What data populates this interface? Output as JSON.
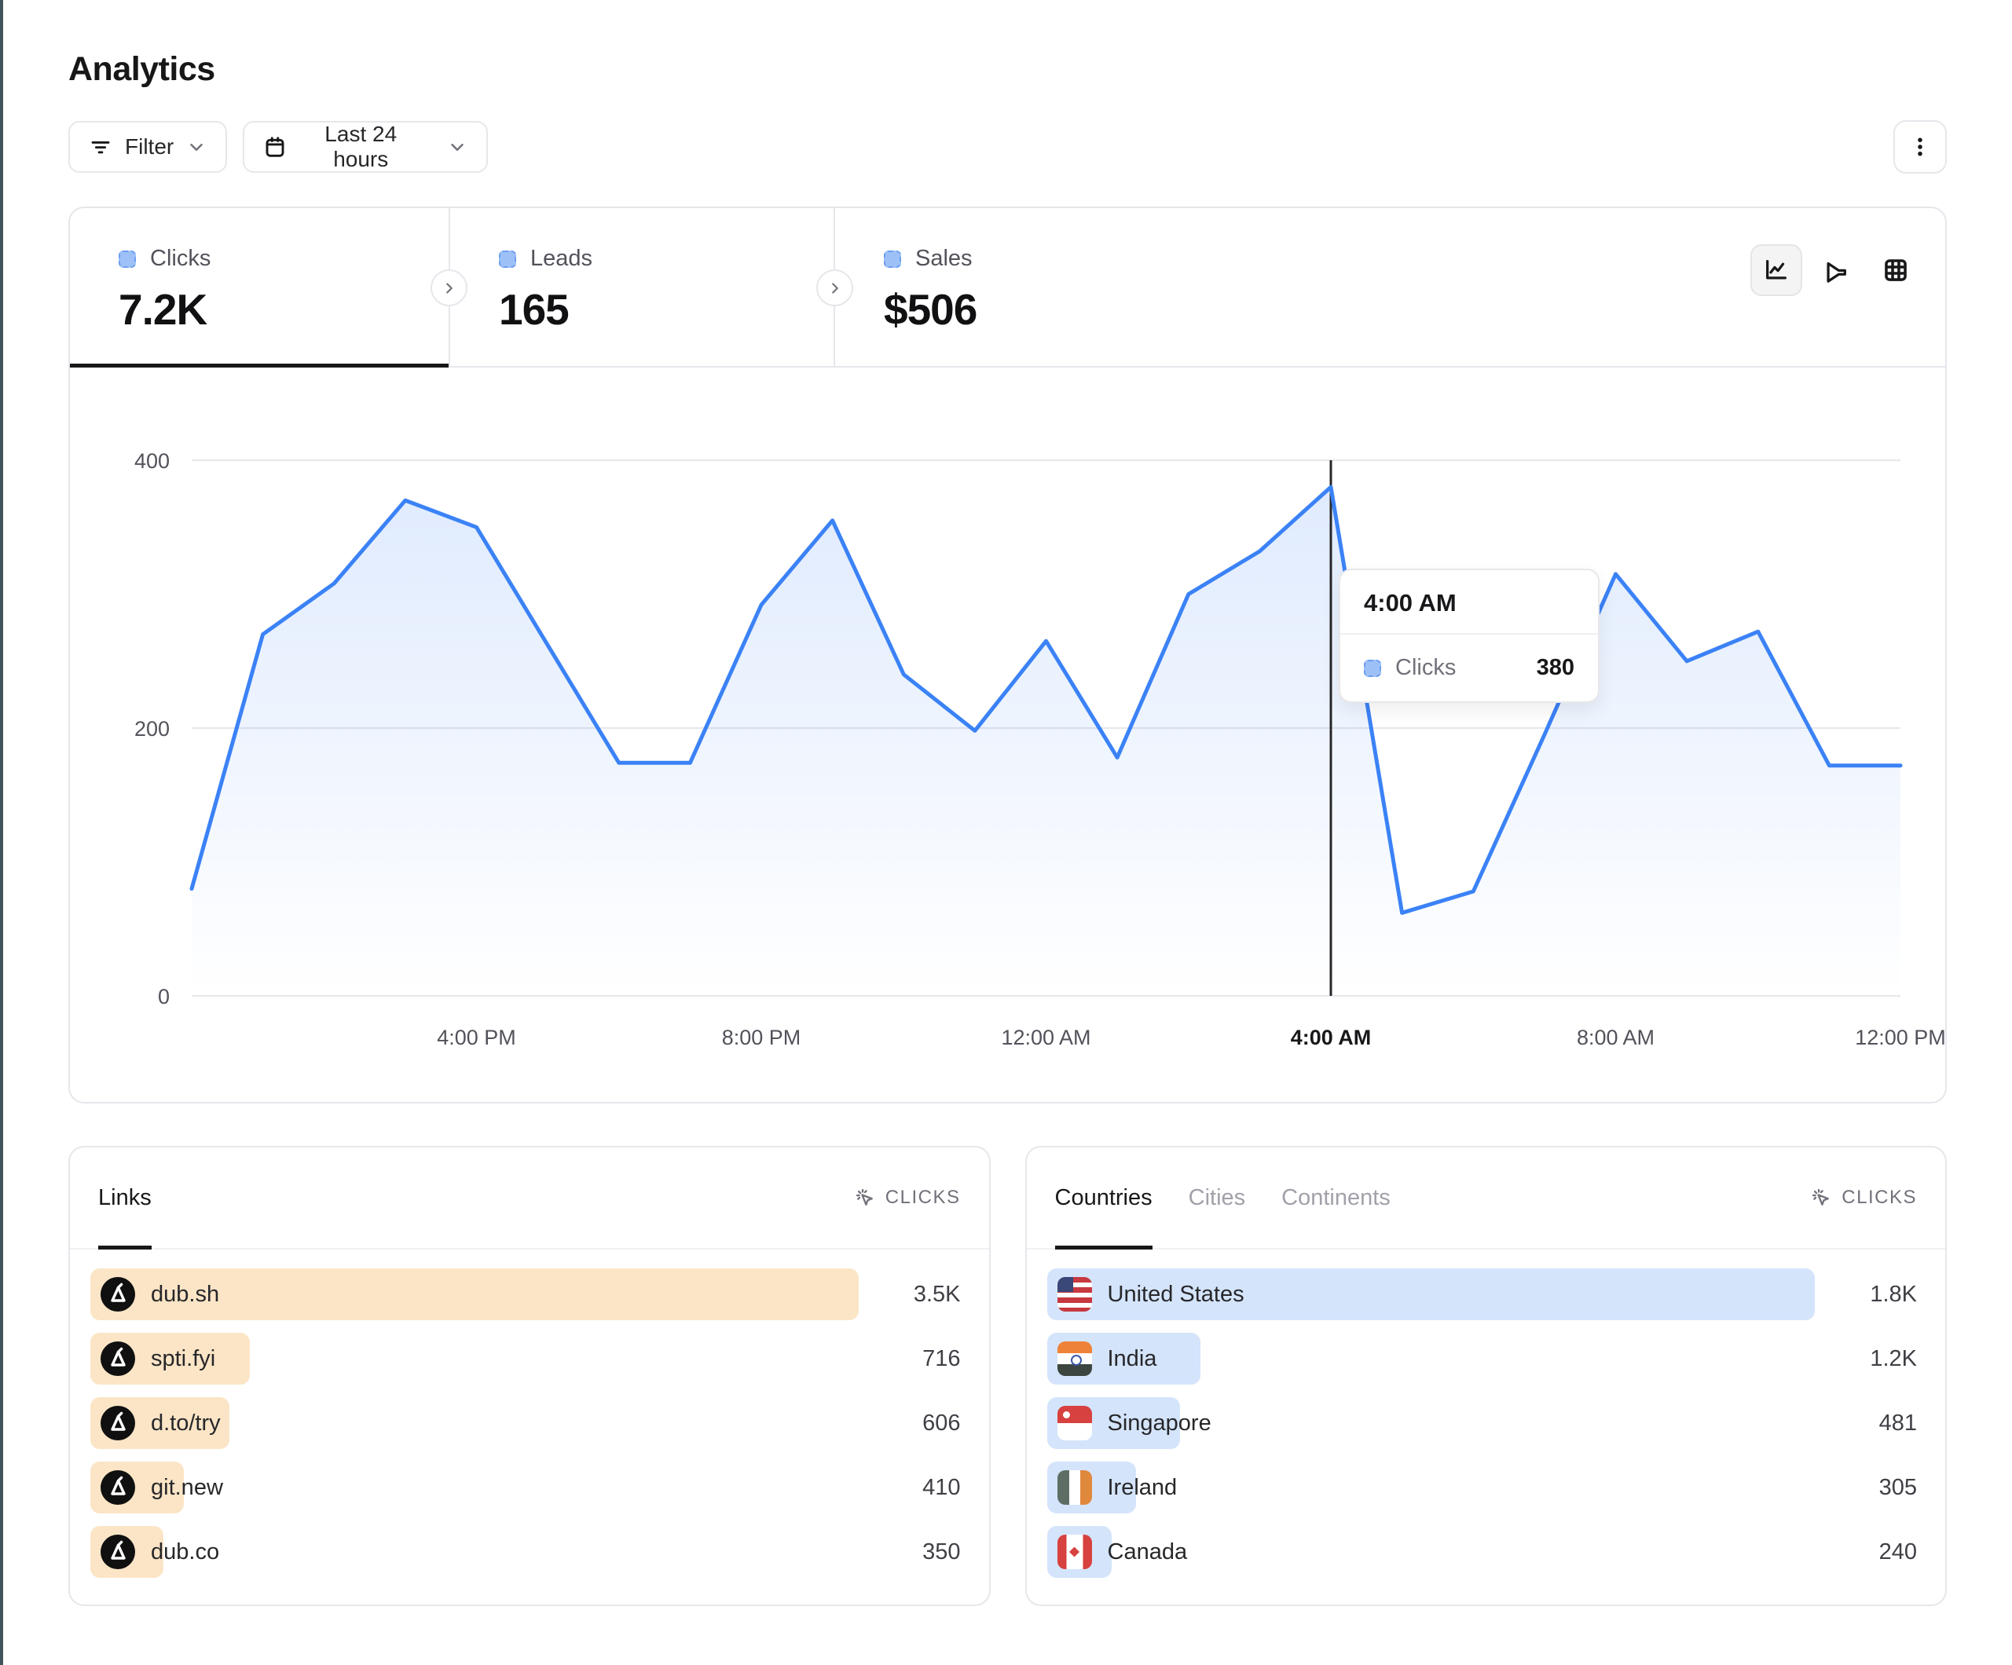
{
  "page": {
    "title": "Analytics"
  },
  "toolbar": {
    "filter_label": "Filter",
    "date_range_label": "Last 24 hours"
  },
  "stats": [
    {
      "label": "Clicks",
      "value": "7.2K",
      "active": true
    },
    {
      "label": "Leads",
      "value": "165",
      "active": false
    },
    {
      "label": "Sales",
      "value": "$506",
      "active": false
    }
  ],
  "chart_data": {
    "type": "area",
    "title": "Clicks over last 24 hours",
    "series_name": "Clicks",
    "x_unit": "hour_offset_from_noon",
    "x": [
      0,
      1,
      2,
      3,
      4,
      5,
      6,
      7,
      8,
      9,
      10,
      11,
      12,
      13,
      14,
      15,
      16,
      17,
      18,
      19,
      20,
      21,
      22,
      23,
      24
    ],
    "values": [
      80,
      270,
      308,
      370,
      350,
      262,
      174,
      174,
      292,
      355,
      240,
      198,
      265,
      178,
      300,
      332,
      380,
      62,
      78,
      195,
      315,
      250,
      272,
      172,
      172
    ],
    "ylim": [
      0,
      400
    ],
    "y_ticks": [
      0,
      200,
      400
    ],
    "x_tick_positions": [
      4,
      8,
      12,
      16,
      20,
      24
    ],
    "x_tick_labels": [
      "4:00 PM",
      "8:00 PM",
      "12:00 AM",
      "4:00 AM",
      "8:00 AM",
      "12:00 PM"
    ],
    "grid": "horizontal",
    "legend_position": "none",
    "crosshair_x": 16,
    "hovered_label": "4:00 AM",
    "hovered_value": 380
  },
  "tooltip": {
    "time": "4:00 AM",
    "series": "Clicks",
    "value": "380"
  },
  "links_panel": {
    "tabs": [
      {
        "label": "Links",
        "active": true
      }
    ],
    "metric_label": "CLICKS",
    "rows": [
      {
        "label": "dub.sh",
        "value": "3.5K",
        "bar_pct": 100
      },
      {
        "label": "spti.fyi",
        "value": "716",
        "bar_pct": 20.8
      },
      {
        "label": "d.to/try",
        "value": "606",
        "bar_pct": 18.1
      },
      {
        "label": "git.new",
        "value": "410",
        "bar_pct": 12.2
      },
      {
        "label": "dub.co",
        "value": "350",
        "bar_pct": 9.5
      }
    ]
  },
  "countries_panel": {
    "tabs": [
      {
        "label": "Countries",
        "active": true
      },
      {
        "label": "Cities",
        "active": false
      },
      {
        "label": "Continents",
        "active": false
      }
    ],
    "metric_label": "CLICKS",
    "rows": [
      {
        "label": "United States",
        "value": "1.8K",
        "bar_pct": 100,
        "flag": "us"
      },
      {
        "label": "India",
        "value": "1.2K",
        "bar_pct": 20,
        "flag": "in"
      },
      {
        "label": "Singapore",
        "value": "481",
        "bar_pct": 17.3,
        "flag": "sg"
      },
      {
        "label": "Ireland",
        "value": "305",
        "bar_pct": 11.6,
        "flag": "ie"
      },
      {
        "label": "Canada",
        "value": "240",
        "bar_pct": 8.4,
        "flag": "ca"
      }
    ]
  },
  "colors": {
    "line_blue": "#3b82f6",
    "area_fill_top": "rgba(59,130,246,0.16)",
    "area_fill_bottom": "rgba(59,130,246,0.0)",
    "legend_square_fill": "#9dc1f7",
    "legend_square_border": "#6d9ef0",
    "link_bar": "#fbe5c6",
    "country_bar": "#d4e4fb",
    "grid_line": "#e5e7eb",
    "axis_text": "#52525b",
    "crosshair": "#27272a",
    "active_tab_underline": "#18181b"
  }
}
